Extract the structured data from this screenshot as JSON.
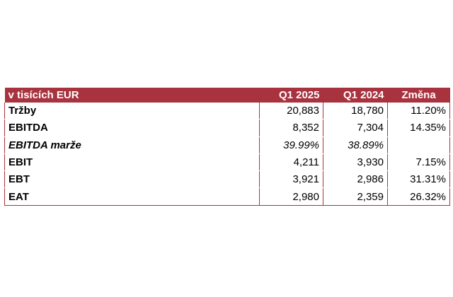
{
  "table": {
    "headers": {
      "label": "v tisících EUR",
      "q1_2025": "Q1 2025",
      "q1_2024": "Q1 2024",
      "change": "Změna"
    },
    "rows": [
      {
        "label": "Tržby",
        "q1_2025": "20,883",
        "q1_2024": "18,780",
        "change": "11.20%"
      },
      {
        "label": "EBITDA",
        "q1_2025": "8,352",
        "q1_2024": "7,304",
        "change": "14.35%"
      },
      {
        "label": "EBITDA marže",
        "q1_2025": "39.99%",
        "q1_2024": "38.89%",
        "change": ""
      },
      {
        "label": "EBIT",
        "q1_2025": "4,211",
        "q1_2024": "3,930",
        "change": "7.15%"
      },
      {
        "label": "EBT",
        "q1_2025": "3,921",
        "q1_2024": "2,986",
        "change": "31.31%"
      },
      {
        "label": "EAT",
        "q1_2025": "2,980",
        "q1_2024": "2,359",
        "change": "26.32%"
      }
    ]
  },
  "colors": {
    "header_background": "#a8333f",
    "header_text": "#ffffff"
  }
}
